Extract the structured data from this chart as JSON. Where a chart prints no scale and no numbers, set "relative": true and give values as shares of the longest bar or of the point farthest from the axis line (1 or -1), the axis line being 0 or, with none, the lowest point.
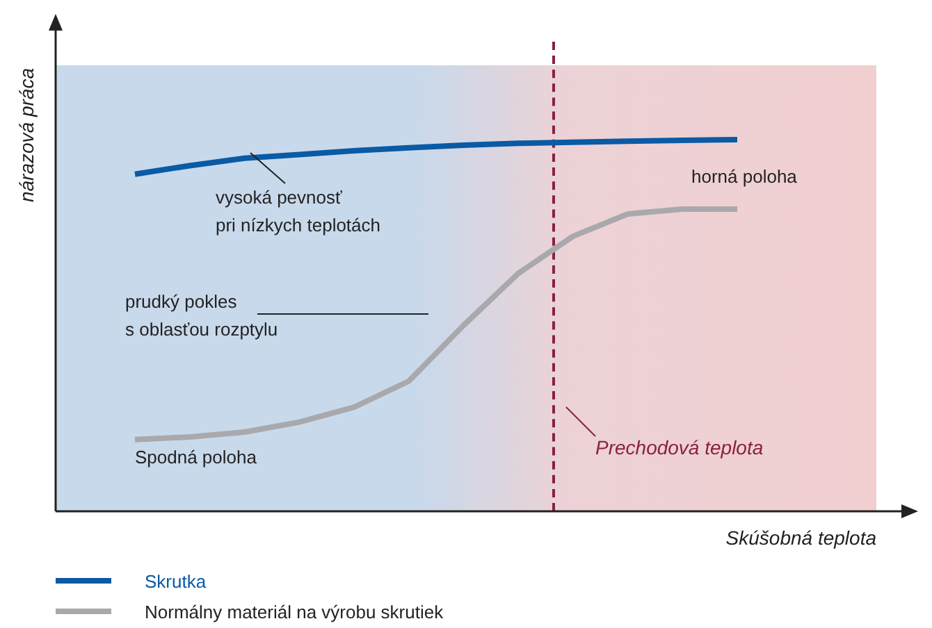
{
  "chart_data": {
    "type": "line",
    "relative": true,
    "xlabel": "Skúšobná teplota",
    "ylabel": "nárazová práca",
    "categories": [
      null,
      null,
      null,
      null,
      null,
      null,
      null,
      null,
      null,
      null,
      null,
      null
    ],
    "legend": "bottom",
    "marker": "none",
    "line_style": "solid",
    "series": [
      {
        "name": "Skrutka",
        "color": "#0a5aa5",
        "values": [
          0.907,
          0.93,
          0.95,
          0.96,
          0.97,
          0.978,
          0.985,
          0.99,
          0.993,
          0.996,
          0.998,
          1
        ]
      },
      {
        "name": "Normálny materiál na výrobu skrutiek",
        "color": "#a9a9ad",
        "values": [
          0.193,
          0.2,
          0.213,
          0.24,
          0.28,
          0.35,
          0.5,
          0.64,
          0.74,
          0.8,
          0.813,
          0.813
        ]
      }
    ],
    "annotations": [
      "vysoká pevnosť\npri nízkych teplotách",
      "prudký pokles\ns oblasťou rozptylu",
      "horná poloha",
      "Spodná poloha",
      "Prechodová teplota"
    ]
  }
}
